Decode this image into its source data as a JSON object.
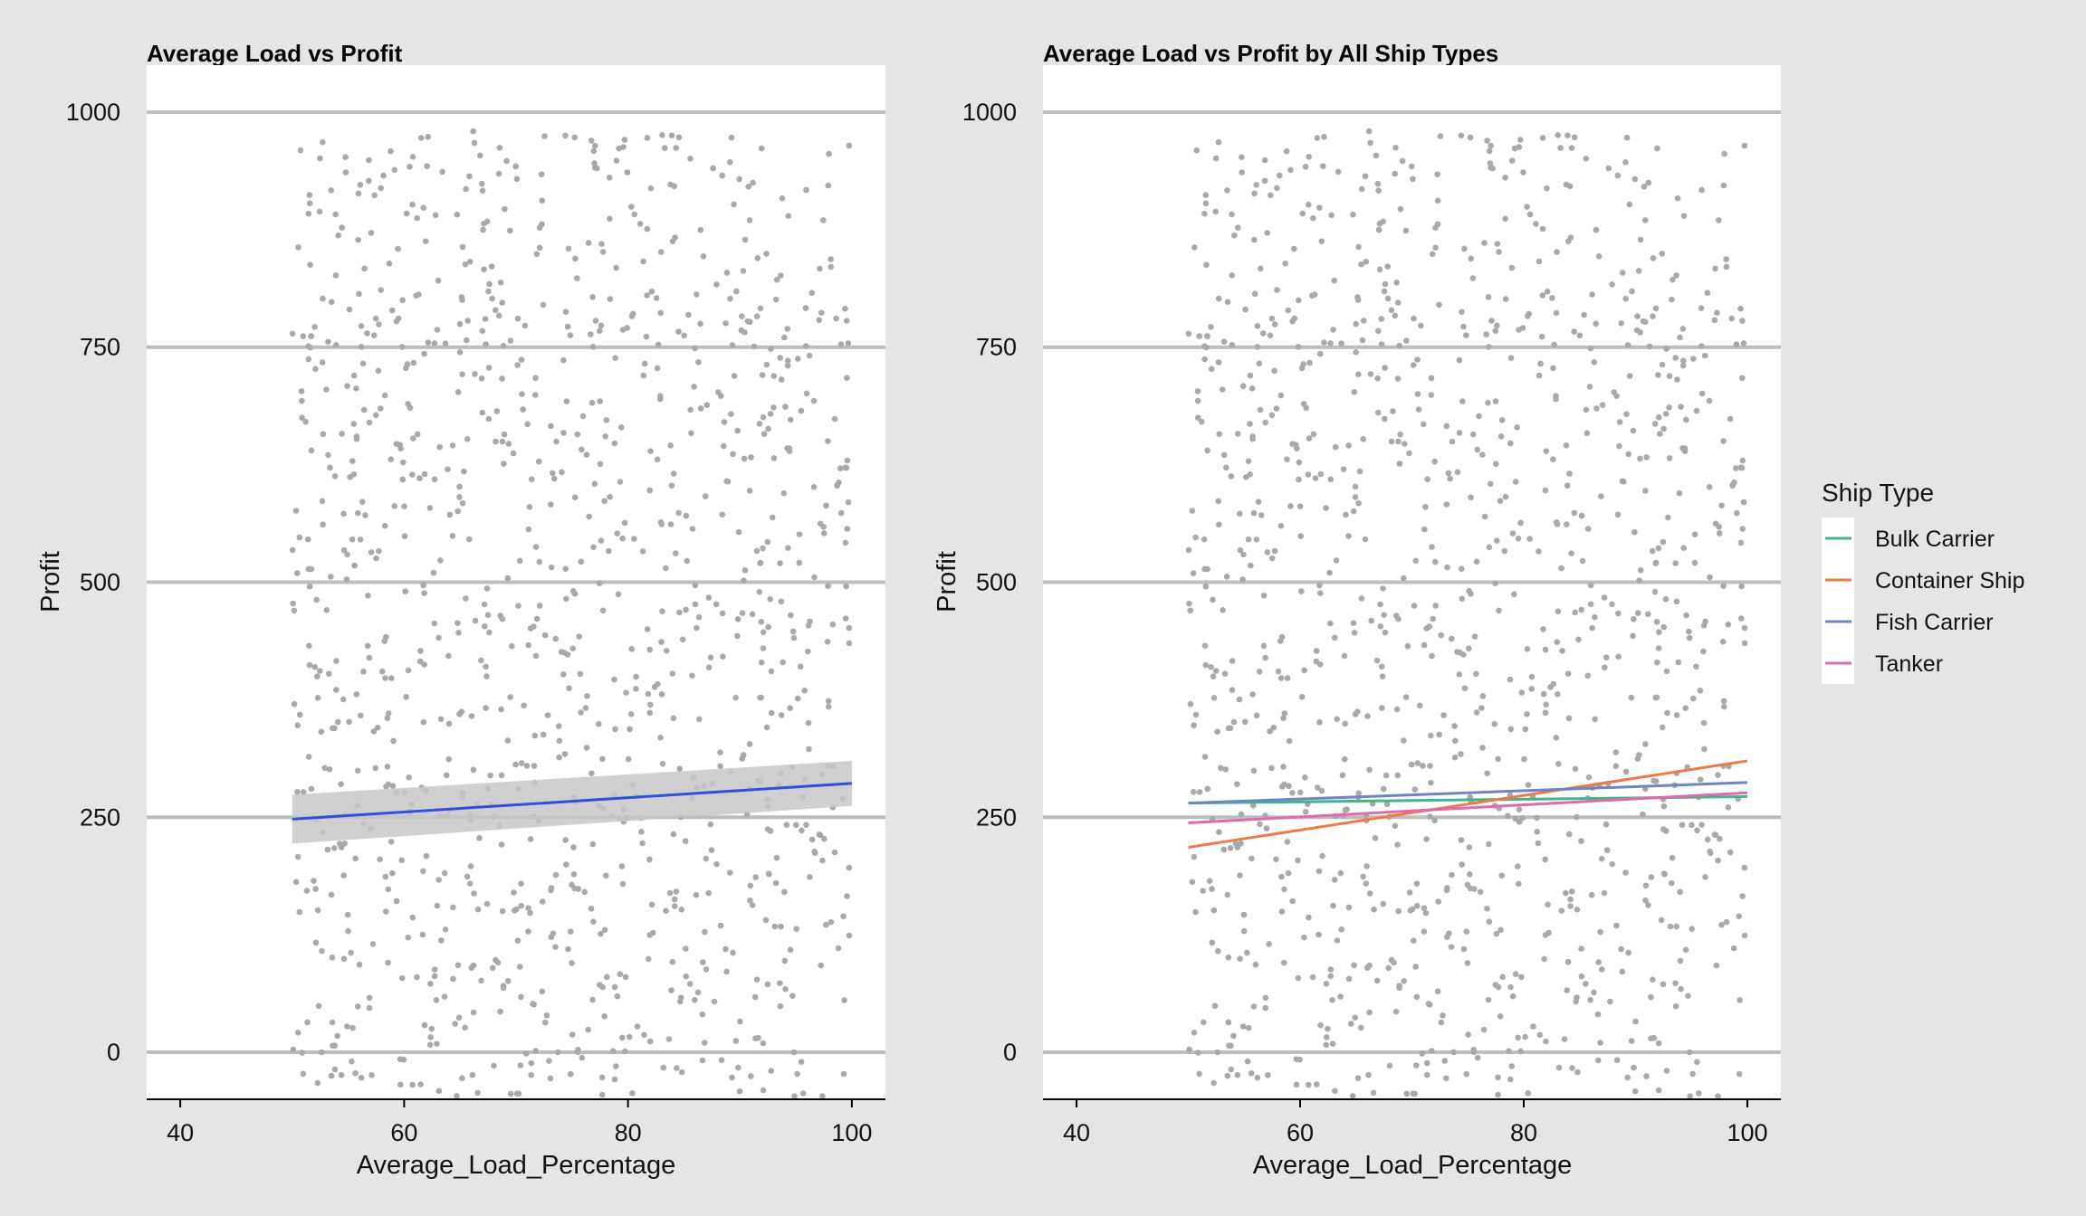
{
  "colors": {
    "outer_background": "#e5e5e5",
    "panel_background": "#ffffff",
    "gridline": "#bdbdbd",
    "points": "#a9a9a9",
    "fit_line": "#2f4fe0",
    "ci_band": "#c8c8c8"
  },
  "chart_data": [
    {
      "type": "scatter",
      "title": "Average Load vs Profit",
      "xlabel": "Average_Load_Percentage",
      "ylabel": "Profit",
      "xlim": [
        37,
        103
      ],
      "ylim": [
        -50,
        1050
      ],
      "x_ticks": [
        40,
        60,
        80,
        100
      ],
      "y_ticks": [
        0,
        250,
        500,
        750,
        1000
      ],
      "grid": "horizontal major lines",
      "points": {
        "color": "#a9a9a9",
        "n": 1100,
        "x_range": [
          50,
          100
        ],
        "y_range": [
          -50,
          980
        ],
        "distribution": "approximately uniform"
      },
      "trend": {
        "method": "linear fit",
        "color": "#2f4fe0",
        "x": [
          50,
          100
        ],
        "y": [
          248,
          286
        ],
        "ci_lower": [
          222,
          262
        ],
        "ci_upper": [
          274,
          310
        ]
      }
    },
    {
      "type": "scatter",
      "title": "Average Load vs Profit by All Ship Types",
      "xlabel": "Average_Load_Percentage",
      "ylabel": "Profit",
      "xlim": [
        37,
        103
      ],
      "ylim": [
        -50,
        1050
      ],
      "x_ticks": [
        40,
        60,
        80,
        100
      ],
      "y_ticks": [
        0,
        250,
        500,
        750,
        1000
      ],
      "grid": "horizontal major lines",
      "points": {
        "color": "#a9a9a9",
        "n": 1100,
        "x_range": [
          50,
          100
        ],
        "y_range": [
          -50,
          980
        ],
        "distribution": "approximately uniform"
      },
      "legend": {
        "title": "Ship Type",
        "position": "right"
      },
      "series": [
        {
          "name": "Bulk Carrier",
          "color": "#3fb58e",
          "x": [
            50,
            100
          ],
          "y": [
            265,
            272
          ]
        },
        {
          "name": "Container Ship",
          "color": "#f07a45",
          "x": [
            50,
            100
          ],
          "y": [
            218,
            310
          ]
        },
        {
          "name": "Fish Carrier",
          "color": "#6f84c6",
          "x": [
            50,
            100
          ],
          "y": [
            265,
            287
          ]
        },
        {
          "name": "Tanker",
          "color": "#e06aac",
          "x": [
            50,
            100
          ],
          "y": [
            244,
            276
          ]
        }
      ]
    }
  ]
}
